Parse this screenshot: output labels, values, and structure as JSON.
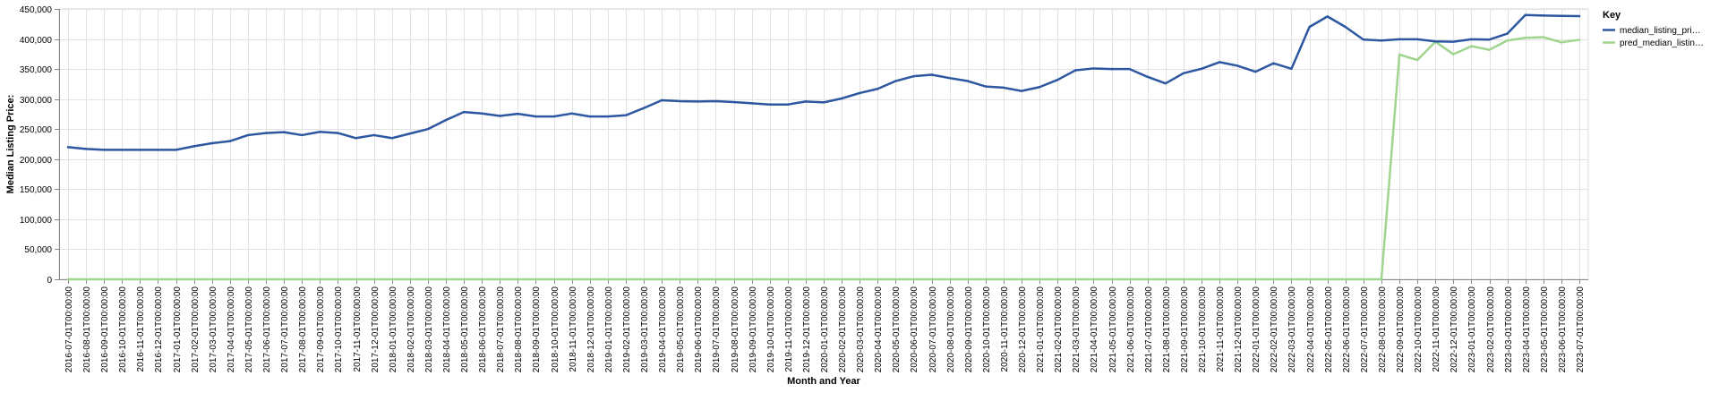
{
  "chart_data": {
    "type": "line",
    "xlabel": "Month and Year",
    "ylabel": "Median Listing Price:",
    "ylim": [
      0,
      450000
    ],
    "y_ticks": [
      0,
      50000,
      100000,
      150000,
      200000,
      250000,
      300000,
      350000,
      400000,
      450000
    ],
    "y_tick_labels": [
      "0",
      "50,000",
      "100,000",
      "150,000",
      "200,000",
      "250,000",
      "300,000",
      "350,000",
      "400,000",
      "450,000"
    ],
    "grid": true,
    "legend": {
      "title": "Key",
      "position": "top-right",
      "entries": [
        "median_listing_pri…",
        "pred_median_listin…"
      ]
    },
    "x": [
      "2016-07-01T00:00:00",
      "2016-08-01T00:00:00",
      "2016-09-01T00:00:00",
      "2016-10-01T00:00:00",
      "2016-11-01T00:00:00",
      "2016-12-01T00:00:00",
      "2017-01-01T00:00:00",
      "2017-02-01T00:00:00",
      "2017-03-01T00:00:00",
      "2017-04-01T00:00:00",
      "2017-05-01T00:00:00",
      "2017-06-01T00:00:00",
      "2017-07-01T00:00:00",
      "2017-08-01T00:00:00",
      "2017-09-01T00:00:00",
      "2017-10-01T00:00:00",
      "2017-11-01T00:00:00",
      "2017-12-01T00:00:00",
      "2018-01-01T00:00:00",
      "2018-02-01T00:00:00",
      "2018-03-01T00:00:00",
      "2018-04-01T00:00:00",
      "2018-05-01T00:00:00",
      "2018-06-01T00:00:00",
      "2018-07-01T00:00:00",
      "2018-08-01T00:00:00",
      "2018-09-01T00:00:00",
      "2018-10-01T00:00:00",
      "2018-11-01T00:00:00",
      "2018-12-01T00:00:00",
      "2019-01-01T00:00:00",
      "2019-02-01T00:00:00",
      "2019-03-01T00:00:00",
      "2019-04-01T00:00:00",
      "2019-05-01T00:00:00",
      "2019-06-01T00:00:00",
      "2019-07-01T00:00:00",
      "2019-08-01T00:00:00",
      "2019-09-01T00:00:00",
      "2019-10-01T00:00:00",
      "2019-11-01T00:00:00",
      "2019-12-01T00:00:00",
      "2020-01-01T00:00:00",
      "2020-02-01T00:00:00",
      "2020-03-01T00:00:00",
      "2020-04-01T00:00:00",
      "2020-05-01T00:00:00",
      "2020-06-01T00:00:00",
      "2020-07-01T00:00:00",
      "2020-08-01T00:00:00",
      "2020-09-01T00:00:00",
      "2020-10-01T00:00:00",
      "2020-11-01T00:00:00",
      "2020-12-01T00:00:00",
      "2021-01-01T00:00:00",
      "2021-02-01T00:00:00",
      "2021-03-01T00:00:00",
      "2021-04-01T00:00:00",
      "2021-05-01T00:00:00",
      "2021-06-01T00:00:00",
      "2021-07-01T00:00:00",
      "2021-08-01T00:00:00",
      "2021-09-01T00:00:00",
      "2021-10-01T00:00:00",
      "2021-11-01T00:00:00",
      "2021-12-01T00:00:00",
      "2022-01-01T00:00:00",
      "2022-02-01T00:00:00",
      "2022-03-01T00:00:00",
      "2022-04-01T00:00:00",
      "2022-05-01T00:00:00",
      "2022-06-01T00:00:00",
      "2022-07-01T00:00:00",
      "2022-08-01T00:00:00",
      "2022-09-01T00:00:00",
      "2022-10-01T00:00:00",
      "2022-11-01T00:00:00",
      "2022-12-01T00:00:00",
      "2023-01-01T00:00:00",
      "2023-02-01T00:00:00",
      "2023-03-01T00:00:00",
      "2023-04-01T00:00:00",
      "2023-05-01T00:00:00",
      "2023-06-01T00:00:00",
      "2023-07-01T00:00:00"
    ],
    "series": [
      {
        "name": "median_listing_pri…",
        "color": "#2d57a0",
        "values": [
          219900,
          217000,
          215500,
          215500,
          215500,
          215500,
          215500,
          221500,
          226500,
          230000,
          240000,
          243500,
          245000,
          240000,
          245500,
          243500,
          235000,
          240000,
          235000,
          242500,
          250000,
          265000,
          278500,
          276000,
          272000,
          275500,
          271000,
          271000,
          276000,
          271000,
          271000,
          273000,
          285000,
          298000,
          296500,
          296000,
          296500,
          295000,
          293000,
          291000,
          291000,
          296000,
          294500,
          301000,
          310000,
          317000,
          330000,
          338000,
          340500,
          335000,
          330000,
          321000,
          319000,
          313500,
          320000,
          332000,
          348000,
          351000,
          350000,
          350000,
          337000,
          326000,
          343000,
          350500,
          361500,
          355500,
          345500,
          359500,
          350500,
          420000,
          437500,
          420000,
          399000,
          397500,
          399500,
          399500,
          396000,
          395500,
          399500,
          399000,
          409000,
          440000,
          439000,
          438500,
          438000
        ]
      },
      {
        "name": "pred_median_listin…",
        "color": "#9fd58f",
        "values": [
          0,
          0,
          0,
          0,
          0,
          0,
          0,
          0,
          0,
          0,
          0,
          0,
          0,
          0,
          0,
          0,
          0,
          0,
          0,
          0,
          0,
          0,
          0,
          0,
          0,
          0,
          0,
          0,
          0,
          0,
          0,
          0,
          0,
          0,
          0,
          0,
          0,
          0,
          0,
          0,
          0,
          0,
          0,
          0,
          0,
          0,
          0,
          0,
          0,
          0,
          0,
          0,
          0,
          0,
          0,
          0,
          0,
          0,
          0,
          0,
          0,
          0,
          0,
          0,
          0,
          0,
          0,
          0,
          0,
          0,
          0,
          0,
          0,
          0,
          374000,
          365000,
          395500,
          374500,
          388000,
          382000,
          397500,
          402000,
          403000,
          394500,
          398500
        ]
      }
    ]
  }
}
